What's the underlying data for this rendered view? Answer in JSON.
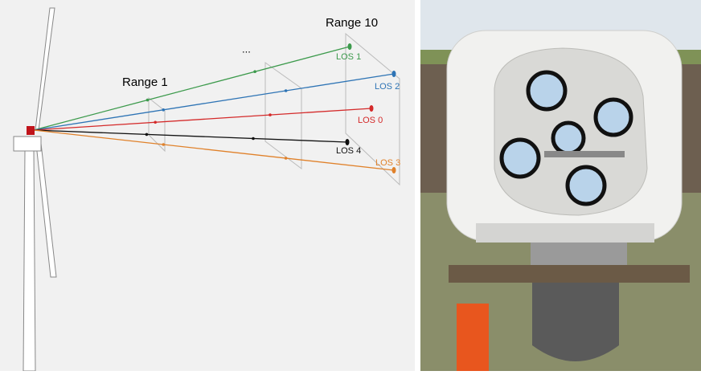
{
  "diagram": {
    "ranges": {
      "first": "Range 1",
      "ellipsis": "...",
      "last": "Range 10"
    },
    "beams": [
      {
        "label": "LOS 1",
        "color": "#3c9a4c"
      },
      {
        "label": "LOS 2",
        "color": "#2e74b5"
      },
      {
        "label": "LOS 0",
        "color": "#d42a2a"
      },
      {
        "label": "LOS 4",
        "color": "#111111"
      },
      {
        "label": "LOS 3",
        "color": "#e0812a"
      }
    ]
  }
}
